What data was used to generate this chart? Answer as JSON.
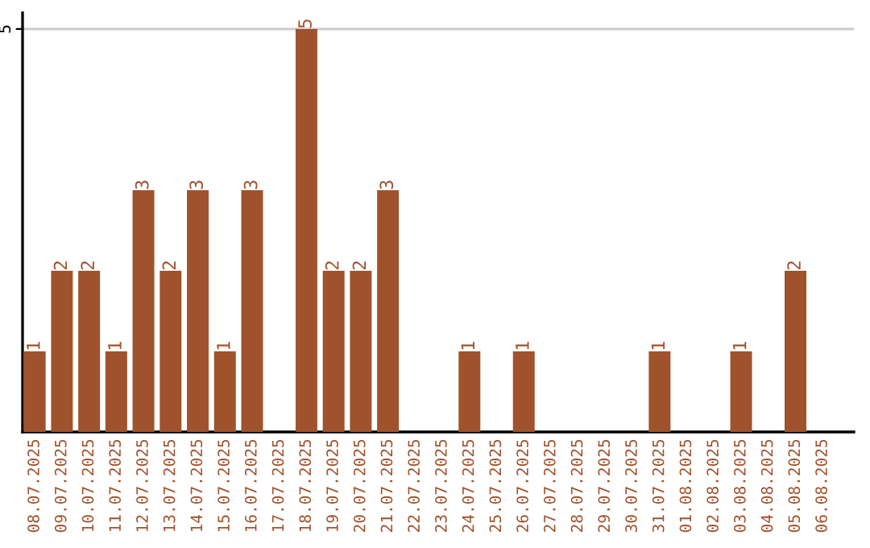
{
  "chart_data": {
    "type": "bar",
    "categories": [
      "08.07.2025",
      "09.07.2025",
      "10.07.2025",
      "11.07.2025",
      "12.07.2025",
      "13.07.2025",
      "14.07.2025",
      "15.07.2025",
      "16.07.2025",
      "17.07.2025",
      "18.07.2025",
      "19.07.2025",
      "20.07.2025",
      "21.07.2025",
      "22.07.2025",
      "23.07.2025",
      "24.07.2025",
      "25.07.2025",
      "26.07.2025",
      "27.07.2025",
      "28.07.2025",
      "29.07.2025",
      "30.07.2025",
      "31.07.2025",
      "01.08.2025",
      "02.08.2025",
      "03.08.2025",
      "04.08.2025",
      "05.08.2025",
      "06.08.2025"
    ],
    "values": [
      1,
      2,
      2,
      1,
      3,
      2,
      3,
      1,
      3,
      0,
      5,
      2,
      2,
      3,
      0,
      0,
      1,
      0,
      1,
      0,
      0,
      0,
      0,
      1,
      0,
      0,
      1,
      0,
      2,
      0
    ],
    "value_labels": [
      "1",
      "2",
      "2",
      "1",
      "3",
      "2",
      "3",
      "1",
      "3",
      null,
      "5",
      "2",
      "2",
      "3",
      null,
      null,
      "1",
      null,
      "1",
      null,
      null,
      null,
      null,
      "1",
      null,
      null,
      "1",
      null,
      "2",
      null
    ],
    "color": "#a0522d",
    "ylim": [
      0,
      5.2
    ],
    "yticks": [
      5
    ],
    "grid": "y"
  }
}
